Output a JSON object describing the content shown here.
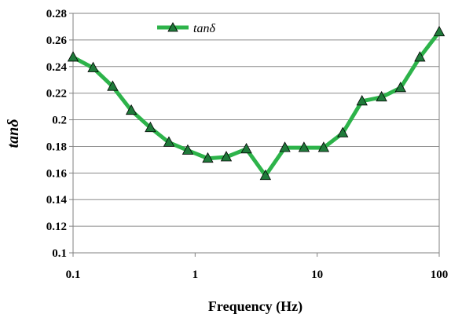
{
  "chart_data": {
    "type": "line",
    "xlabel": "Frequency (Hz)",
    "ylabel": "tanδ",
    "xscale": "log",
    "xlim": [
      0.1,
      100
    ],
    "ylim": [
      0.1,
      0.28
    ],
    "xticks": [
      "0.1",
      "1",
      "10",
      "100"
    ],
    "yticks": [
      "0.1",
      "0.12",
      "0.14",
      "0.16",
      "0.18",
      "0.2",
      "0.22",
      "0.24",
      "0.26",
      "0.28"
    ],
    "grid": "horizontal",
    "legend_position": "top-left",
    "series": [
      {
        "name": "tanδ",
        "color": "#2db34a",
        "marker": "triangle",
        "marker_color": "#1f7a3a",
        "x": [
          0.1,
          0.146,
          0.211,
          0.3,
          0.43,
          0.61,
          0.87,
          1.27,
          1.8,
          2.63,
          3.77,
          5.44,
          7.8,
          11.3,
          16.2,
          23.3,
          33.7,
          48.2,
          69.4,
          100
        ],
        "y": [
          0.247,
          0.239,
          0.225,
          0.207,
          0.194,
          0.183,
          0.177,
          0.171,
          0.172,
          0.178,
          0.158,
          0.179,
          0.179,
          0.179,
          0.19,
          0.214,
          0.217,
          0.224,
          0.247,
          0.266
        ]
      }
    ]
  }
}
